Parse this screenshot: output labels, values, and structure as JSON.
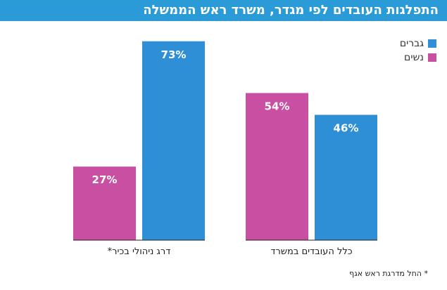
{
  "title": "התפלגות העובדים לפי מגדר, משרד ראש הממשלה",
  "legend": {
    "men": "גברים",
    "women": "נשים"
  },
  "footnote": "* החל מדרגת ראש אגף",
  "colors": {
    "header": "#2a9bd6",
    "men": "#2f8fd6",
    "women": "#c94fa3"
  },
  "chart_data": {
    "type": "bar",
    "categories": [
      "דרג ניהולי בכיר*",
      "כלל העובדים במשרד"
    ],
    "series": [
      {
        "name": "נשים",
        "values": [
          27,
          54
        ],
        "labels": [
          "27%",
          "54%"
        ]
      },
      {
        "name": "גברים",
        "values": [
          73,
          46
        ],
        "labels": [
          "73%",
          "46%"
        ]
      }
    ],
    "ylim": [
      0,
      100
    ],
    "legend_position": "top-right",
    "grid": false
  }
}
